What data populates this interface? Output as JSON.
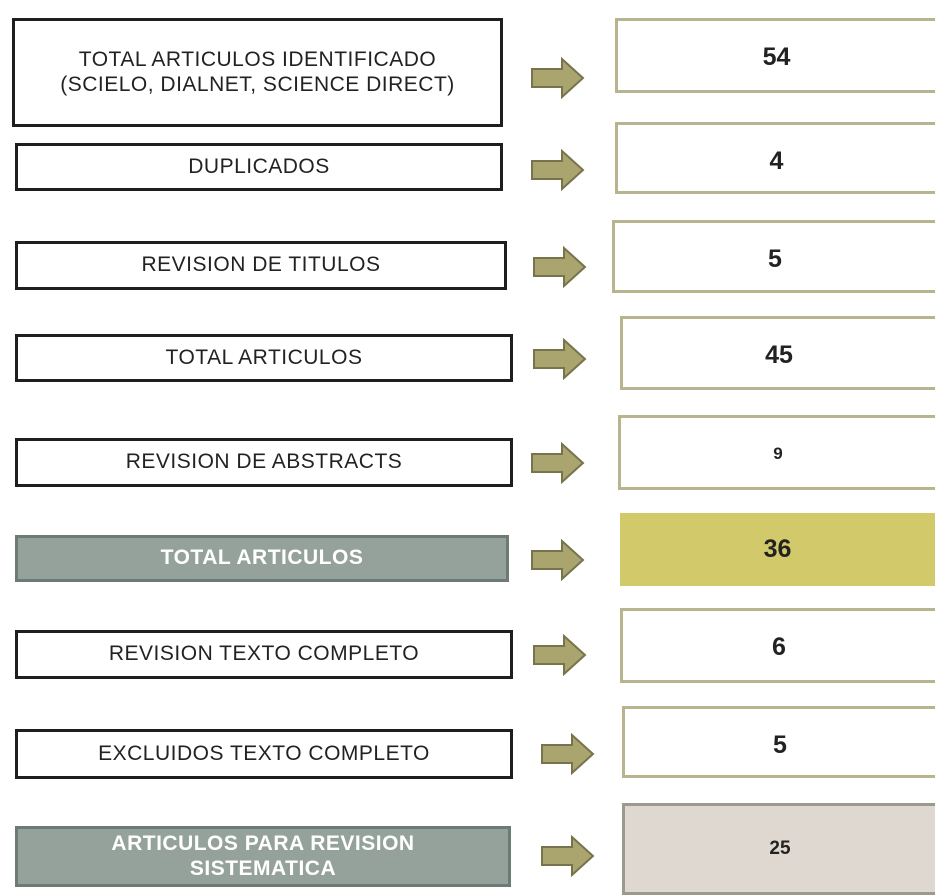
{
  "rows": [
    {
      "label": "TOTAL ARTICULOS IDENTIFICADO (SCIELO, DIALNET, SCIENCE DIRECT)",
      "value": 54
    },
    {
      "label": "DUPLICADOS",
      "value": 4
    },
    {
      "label": "REVISION DE TITULOS",
      "value": 5
    },
    {
      "label": "TOTAL ARTICULOS",
      "value": 45
    },
    {
      "label": "REVISION DE ABSTRACTS",
      "value": 9
    },
    {
      "label": "TOTAL ARTICULOS",
      "value": 36
    },
    {
      "label": "REVISION TEXTO COMPLETO",
      "value": 6
    },
    {
      "label": "EXCLUIDOS TEXTO COMPLETO",
      "value": 5
    },
    {
      "label": "ARTICULOS PARA REVISION SISTEMATICA",
      "value": 25
    }
  ]
}
